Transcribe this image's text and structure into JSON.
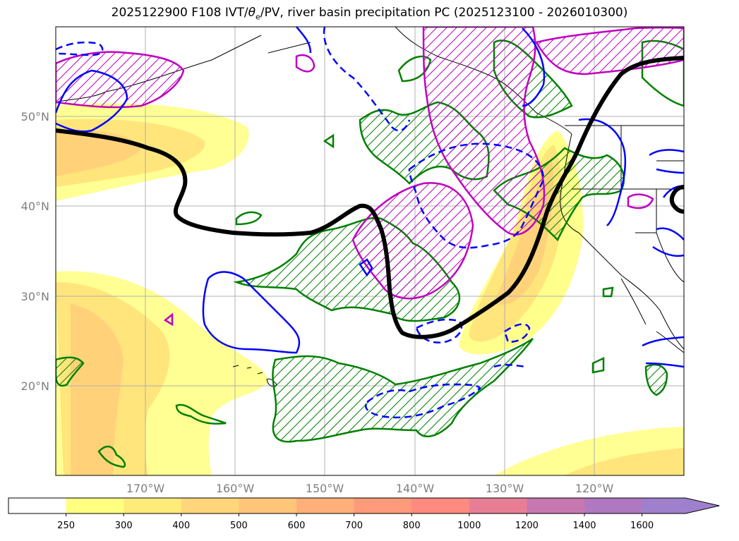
{
  "title": {
    "prefix": "2025122900 F108 IVT/",
    "theta": "θ",
    "theta_sub": "e",
    "suffix": "/PV, river basin precipitation PC (2025123100 - 2026010300)"
  },
  "axes": {
    "lat_labels": [
      "50°N",
      "40°N",
      "30°N",
      "20°N"
    ],
    "lon_labels": [
      "170°W",
      "160°W",
      "150°W",
      "140°W",
      "130°W",
      "120°W"
    ]
  },
  "colorbar": {
    "ticks": [
      "250",
      "300",
      "400",
      "500",
      "600",
      "700",
      "800",
      "1000",
      "1200",
      "1400",
      "1600"
    ],
    "colors": [
      "#ffffff",
      "#ffff80",
      "#ffeb7a",
      "#ffd67a",
      "#ffc67a",
      "#ffb07a",
      "#ff9a7a",
      "#ff8a80",
      "#e87e94",
      "#c878b0",
      "#b078c0",
      "#9f80cc"
    ]
  },
  "colors": {
    "ivt_light": "#ffff80",
    "ivt_mid": "#ffe27a",
    "ivt_dark": "#ffcf7a",
    "precip_contour": "#008000",
    "pv_contour": "#c000c0",
    "theta_contour": "#0000ff",
    "front_line": "#000000",
    "grid": "#b0b0b0"
  }
}
